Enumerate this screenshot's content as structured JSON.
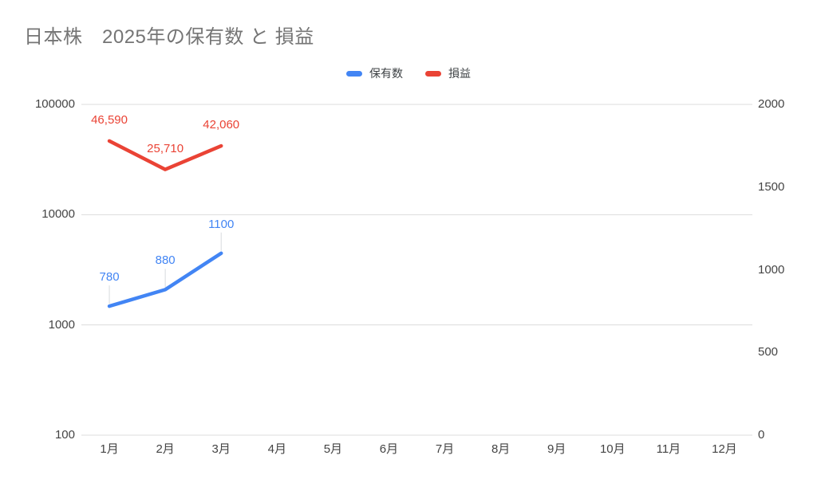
{
  "title": "日本株　2025年の保有数 と 損益",
  "legend": {
    "items": [
      {
        "label": "保有数",
        "color": "#4285F4"
      },
      {
        "label": "損益",
        "color": "#EA4335"
      }
    ]
  },
  "chart_data": {
    "type": "line",
    "title": "日本株　2025年の保有数 と 損益",
    "categories": [
      "1月",
      "2月",
      "3月",
      "4月",
      "5月",
      "6月",
      "7月",
      "8月",
      "9月",
      "10月",
      "11月",
      "12月"
    ],
    "series": [
      {
        "name": "保有数",
        "axis": "right",
        "color": "#4285F4",
        "categories": [
          "1月",
          "2月",
          "3月"
        ],
        "values": [
          780,
          880,
          1100
        ],
        "data_labels": [
          "780",
          "880",
          "1100"
        ],
        "leader_lines": true
      },
      {
        "name": "損益",
        "axis": "left",
        "color": "#EA4335",
        "categories": [
          "1月",
          "2月",
          "3月"
        ],
        "values": [
          46590,
          25710,
          42060
        ],
        "data_labels": [
          "46,590",
          "25,710",
          "42,060"
        ],
        "leader_lines": false
      }
    ],
    "axes": {
      "left": {
        "scale": "log",
        "min": 100,
        "max": 100000,
        "ticks": [
          "100000",
          "10000",
          "1000",
          "100"
        ]
      },
      "right": {
        "scale": "linear",
        "min": 0,
        "max": 2000,
        "ticks": [
          "2000",
          "1500",
          "1000",
          "500",
          "0"
        ]
      }
    },
    "grid": true,
    "gridline_count": 4,
    "legend_position": "top",
    "xlabel": "",
    "ylabel_left": "",
    "ylabel_right": ""
  },
  "colors": {
    "title_text": "#757575",
    "axis_text": "#444444",
    "legend_text": "#3c4043",
    "gridline": "#dcdcdc",
    "leader_line": "#d7dadd",
    "series_blue": "#4285F4",
    "series_red": "#EA4335",
    "background": "#ffffff"
  }
}
